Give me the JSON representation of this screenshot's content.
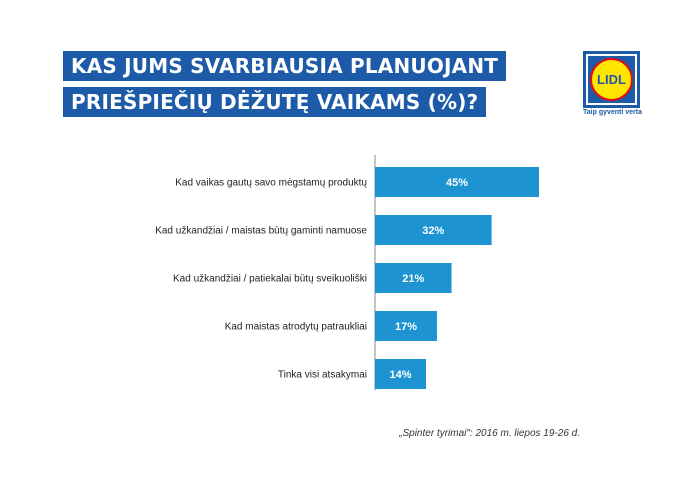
{
  "header": {
    "title_line_1": "KAS JUMS SVARBIAUSIA PLANUOJANT",
    "title_line_2": "PRIEŠPIEČIŲ DĖŽUTĘ VAIKAMS (%)?"
  },
  "logo": {
    "text": "LIDL",
    "tagline": "Taip gyventi verta"
  },
  "colors": {
    "bar": "#1d93d2",
    "title_bg": "#1d5aa8",
    "logo_blue": "#1d5aa8",
    "logo_yellow": "#ffe500",
    "logo_red": "#e60a14"
  },
  "chart_data": {
    "type": "bar",
    "orientation": "horizontal",
    "categories": [
      "Kad vaikas gautų savo mėgstamų produktų",
      "Kad užkandžiai / maistas būtų gaminti namuose",
      "Kad užkandžiai / patiekalai būtų sveikuoliški",
      "Kad maistas atrodytų patraukliai",
      "Tinka visi atsakymai"
    ],
    "values": [
      45,
      32,
      21,
      17,
      14
    ],
    "value_labels": [
      "45%",
      "32%",
      "21%",
      "17%",
      "14%"
    ],
    "xlim": [
      0,
      45
    ],
    "grid": false,
    "legend": "none"
  },
  "source": "„Spinter tyrimai\": 2016 m. liepos 19-26 d."
}
